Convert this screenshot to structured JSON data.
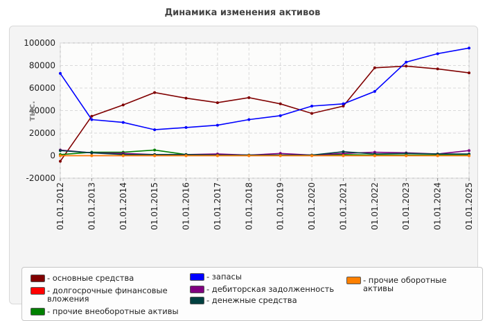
{
  "chart_data": {
    "type": "line",
    "title": "Динамика изменения активов",
    "ylabel": "тыс.",
    "xlabel": "",
    "ylim": [
      -20000,
      100000
    ],
    "yticks": [
      -20000,
      0,
      20000,
      40000,
      60000,
      80000,
      100000
    ],
    "grid": true,
    "legend_position": "bottom",
    "categories": [
      "01.01.2012",
      "01.01.2013",
      "01.01.2014",
      "01.01.2015",
      "01.01.2016",
      "01.01.2017",
      "01.01.2018",
      "01.01.2019",
      "01.01.2020",
      "01.01.2021",
      "01.01.2022",
      "01.01.2023",
      "01.01.2024",
      "01.01.2025"
    ],
    "series": [
      {
        "name": "- основные средства",
        "color": "#800000",
        "values": [
          -5000,
          35000,
          45000,
          56000,
          51000,
          47000,
          51500,
          46000,
          37500,
          44000,
          78000,
          79500,
          77000,
          73500
        ]
      },
      {
        "name": "- долгосрочные финансовые вложения",
        "color": "#ff0000",
        "values": [
          0,
          0,
          0,
          0,
          0,
          0,
          0,
          0,
          0,
          0,
          0,
          0,
          0,
          0
        ]
      },
      {
        "name": "- прочие внеоборотные активы",
        "color": "#008000",
        "values": [
          1000,
          3000,
          3000,
          5000,
          1000,
          1000,
          500,
          500,
          500,
          1000,
          500,
          500,
          500,
          500
        ]
      },
      {
        "name": "- запасы",
        "color": "#0000ff",
        "values": [
          73000,
          32000,
          29500,
          23000,
          25000,
          27000,
          32000,
          35500,
          44000,
          46000,
          57000,
          83000,
          90500,
          95500
        ]
      },
      {
        "name": "- дебиторская задолженность",
        "color": "#800080",
        "values": [
          5000,
          2500,
          2000,
          1000,
          1000,
          1500,
          500,
          2000,
          500,
          2000,
          3000,
          2500,
          1500,
          4500
        ]
      },
      {
        "name": "- денежные средства",
        "color": "#004040",
        "values": [
          4500,
          2500,
          1000,
          1000,
          1000,
          500,
          500,
          500,
          500,
          3500,
          1500,
          2000,
          1500,
          1500
        ]
      },
      {
        "name": "- прочие оборотные активы",
        "color": "#ff8000",
        "values": [
          0,
          0,
          0,
          0,
          0,
          0,
          0,
          0,
          0,
          0,
          0,
          0,
          0,
          0
        ]
      }
    ]
  }
}
